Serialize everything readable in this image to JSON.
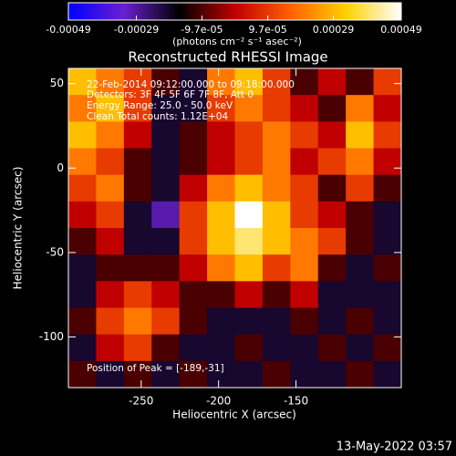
{
  "chart_data": {
    "type": "heatmap",
    "title": "Reconstructed RHESSI Image",
    "colorbar_label": "(photons cm⁻² s⁻¹ asec⁻²)",
    "x_label": "Heliocentric X (arcsec)",
    "y_label": "Heliocentric Y (arcsec)",
    "annotations": [
      "22-Feb-2014 09:12:00.000 to 09:18:00.000",
      "Detectors: 3F 4F 5F 6F 7F 8F, Att 0",
      "Energy Range: 25.0 - 50.0 keV",
      "Clean     Total counts: 1.12E+04"
    ],
    "peak_label": "Position of Peak = [-189,-31]",
    "timestamp": "13-May-2022 03:57",
    "xlim": [
      -297,
      -82
    ],
    "ylim": [
      -130,
      59
    ],
    "xticks": [
      -250,
      -200,
      -150
    ],
    "yticks": [
      50,
      0,
      -50,
      -100
    ],
    "zlim": [
      -0.00049,
      0.00049
    ],
    "zticks": [
      -0.00049,
      -0.00029,
      {
        "value": -9.7e-05,
        "label": "-9.7e-05"
      },
      {
        "value": 9.7e-05,
        "label": "9.7e-05"
      },
      0.00029,
      0.00049
    ],
    "colorscale": [
      "#0000ff",
      "#6a1fd0",
      "#000000",
      "#c00000",
      "#ff6000",
      "#ffd000",
      "#ffffff"
    ],
    "z": [
      [
        0.0003,
        0.0002,
        0.0001,
        -0.0001,
        -0.0002,
        0.0002,
        0.0003,
        0.0001,
        -0.0001,
        0,
        -0.0001,
        0.0001
      ],
      [
        0.0002,
        0.0003,
        0.0001,
        -0.0002,
        -0.0002,
        0.0001,
        0.0002,
        0.0001,
        0,
        -0.0001,
        0.0002,
        0
      ],
      [
        0.0003,
        0.0002,
        0,
        -0.0002,
        -0.0001,
        0,
        0.0001,
        0.0002,
        0.0001,
        0,
        0.0003,
        0.0001
      ],
      [
        0.0002,
        0.0001,
        -0.0001,
        -0.0002,
        -0.0001,
        0,
        0.0001,
        0.0002,
        0,
        0.0001,
        0.0002,
        0
      ],
      [
        0.0001,
        0.0002,
        -0.0001,
        -0.0002,
        0,
        0.0002,
        0.0003,
        0.0002,
        0.0001,
        -0.0001,
        0.0001,
        -0.0001
      ],
      [
        0,
        0.0001,
        -0.0002,
        -0.0003,
        0.0001,
        0.0003,
        0.0005,
        0.0003,
        0.0001,
        0,
        -0.0001,
        -0.0002
      ],
      [
        -0.0001,
        0,
        -0.0002,
        -0.0002,
        0.0001,
        0.0003,
        0.0004,
        0.0003,
        0.0002,
        0.0001,
        -0.0001,
        -0.0002
      ],
      [
        -0.0002,
        -0.0001,
        -0.0001,
        -0.0001,
        0,
        0.0002,
        0.0003,
        0.0001,
        0.0002,
        -0.0001,
        -0.0002,
        -0.0001
      ],
      [
        -0.0002,
        0,
        0.0001,
        0,
        -0.0001,
        -0.0001,
        0,
        -0.0001,
        0,
        -0.0002,
        -0.0002,
        -0.0002
      ],
      [
        -0.0001,
        0.0001,
        0.0002,
        0.0001,
        -0.0001,
        -0.0002,
        -0.0002,
        -0.0002,
        -0.0001,
        -0.0002,
        -0.0001,
        -0.0002
      ],
      [
        -0.0002,
        0,
        0.0001,
        -0.0001,
        -0.0002,
        -0.0002,
        -0.0001,
        -0.0002,
        -0.0002,
        -0.0001,
        -0.0002,
        -0.0001
      ],
      [
        -0.0001,
        -0.0002,
        -0.0001,
        -0.0002,
        -0.0001,
        -0.0002,
        -0.0002,
        -0.0001,
        -0.0002,
        -0.0002,
        -0.0001,
        -0.0002
      ]
    ]
  }
}
